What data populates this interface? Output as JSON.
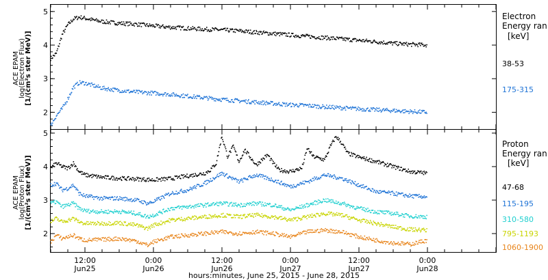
{
  "figure": {
    "xlabel": "hours:minutes, June 25, 2015 - June 28, 2015",
    "x_ticks": [
      {
        "hours": 12,
        "time": "12:00",
        "date": "Jun25"
      },
      {
        "hours": 24,
        "time": "0:00",
        "date": "Jun26"
      },
      {
        "hours": 36,
        "time": "12:00",
        "date": "Jun26"
      },
      {
        "hours": 48,
        "time": "0:00",
        "date": "Jun27"
      },
      {
        "hours": 60,
        "time": "12:00",
        "date": "Jun27"
      },
      {
        "hours": 72,
        "time": "0:00",
        "date": "Jun28"
      }
    ]
  },
  "chart_data": [
    {
      "type": "scatter",
      "panel": "electron",
      "ylabel": [
        "ACE EPAM",
        "log(Electron Flux)",
        "[1/(cm²s ster MeV)]"
      ],
      "ylim": [
        1.5,
        5.2
      ],
      "xlim_hours": [
        6,
        84
      ],
      "y_ticks": [
        2,
        3,
        4,
        5
      ],
      "legend_title": [
        "Electron",
        "Energy ran",
        "[keV]"
      ],
      "series": [
        {
          "name": "38-53",
          "color": "#000000",
          "points": [
            [
              6,
              3.6
            ],
            [
              7,
              3.75
            ],
            [
              8,
              4.3
            ],
            [
              9,
              4.6
            ],
            [
              10,
              4.78
            ],
            [
              11,
              4.83
            ],
            [
              12,
              4.8
            ],
            [
              13,
              4.76
            ],
            [
              15,
              4.7
            ],
            [
              18,
              4.65
            ],
            [
              21,
              4.62
            ],
            [
              24,
              4.57
            ],
            [
              27,
              4.53
            ],
            [
              30,
              4.5
            ],
            [
              33,
              4.47
            ],
            [
              36,
              4.45
            ],
            [
              39,
              4.42
            ],
            [
              42,
              4.38
            ],
            [
              45,
              4.34
            ],
            [
              48,
              4.3
            ],
            [
              51,
              4.26
            ],
            [
              54,
              4.22
            ],
            [
              57,
              4.18
            ],
            [
              60,
              4.14
            ],
            [
              63,
              4.1
            ],
            [
              66,
              4.05
            ],
            [
              69,
              4.02
            ],
            [
              72,
              4.0
            ]
          ]
        },
        {
          "name": "175-315",
          "color": "#1e73d6",
          "points": [
            [
              6,
              1.6
            ],
            [
              7,
              1.9
            ],
            [
              8,
              2.1
            ],
            [
              9,
              2.4
            ],
            [
              10,
              2.75
            ],
            [
              11,
              2.88
            ],
            [
              12,
              2.87
            ],
            [
              13,
              2.82
            ],
            [
              15,
              2.72
            ],
            [
              18,
              2.65
            ],
            [
              21,
              2.6
            ],
            [
              24,
              2.57
            ],
            [
              27,
              2.53
            ],
            [
              30,
              2.48
            ],
            [
              33,
              2.43
            ],
            [
              36,
              2.38
            ],
            [
              39,
              2.34
            ],
            [
              42,
              2.3
            ],
            [
              45,
              2.26
            ],
            [
              48,
              2.22
            ],
            [
              51,
              2.2
            ],
            [
              54,
              2.16
            ],
            [
              57,
              2.13
            ],
            [
              60,
              2.1
            ],
            [
              63,
              2.07
            ],
            [
              66,
              2.05
            ],
            [
              69,
              2.02
            ],
            [
              72,
              2.0
            ]
          ]
        }
      ]
    },
    {
      "type": "scatter",
      "panel": "proton",
      "ylabel": [
        "ACE EPAM",
        "log(Proton Flux)",
        "[1/(cm²s ster MeV)]"
      ],
      "ylim": [
        1.45,
        5.1
      ],
      "xlim_hours": [
        6,
        84
      ],
      "y_ticks": [
        2,
        3,
        4,
        5
      ],
      "legend_title": [
        "Proton",
        "Energy ran",
        "[keV]"
      ],
      "series": [
        {
          "name": "47-68",
          "color": "#000000",
          "points": [
            [
              6,
              3.95
            ],
            [
              7,
              4.1
            ],
            [
              8,
              4.0
            ],
            [
              9,
              3.95
            ],
            [
              10,
              4.1
            ],
            [
              11,
              3.85
            ],
            [
              12,
              3.75
            ],
            [
              15,
              3.68
            ],
            [
              18,
              3.65
            ],
            [
              21,
              3.63
            ],
            [
              24,
              3.6
            ],
            [
              27,
              3.64
            ],
            [
              30,
              3.72
            ],
            [
              33,
              3.8
            ],
            [
              34,
              3.9
            ],
            [
              35,
              4.1
            ],
            [
              36,
              4.9
            ],
            [
              37,
              4.3
            ],
            [
              38,
              4.6
            ],
            [
              39,
              4.15
            ],
            [
              40,
              4.5
            ],
            [
              42,
              4.05
            ],
            [
              44,
              4.35
            ],
            [
              45,
              4.1
            ],
            [
              46,
              3.9
            ],
            [
              48,
              3.85
            ],
            [
              50,
              3.95
            ],
            [
              51,
              4.55
            ],
            [
              52,
              4.3
            ],
            [
              54,
              4.2
            ],
            [
              55,
              4.6
            ],
            [
              56,
              4.9
            ],
            [
              57,
              4.7
            ],
            [
              58,
              4.4
            ],
            [
              60,
              4.28
            ],
            [
              63,
              4.15
            ],
            [
              66,
              4.0
            ],
            [
              69,
              3.85
            ],
            [
              72,
              3.8
            ]
          ]
        },
        {
          "name": "115-195",
          "color": "#1e73d6",
          "points": [
            [
              6,
              3.45
            ],
            [
              7,
              3.5
            ],
            [
              8,
              3.3
            ],
            [
              9,
              3.35
            ],
            [
              10,
              3.45
            ],
            [
              11,
              3.2
            ],
            [
              12,
              3.12
            ],
            [
              15,
              3.05
            ],
            [
              18,
              3.05
            ],
            [
              21,
              3.0
            ],
            [
              23,
              2.9
            ],
            [
              24,
              2.95
            ],
            [
              27,
              3.2
            ],
            [
              30,
              3.3
            ],
            [
              33,
              3.5
            ],
            [
              36,
              3.8
            ],
            [
              39,
              3.55
            ],
            [
              42,
              3.75
            ],
            [
              45,
              3.6
            ],
            [
              48,
              3.4
            ],
            [
              51,
              3.55
            ],
            [
              54,
              3.75
            ],
            [
              57,
              3.65
            ],
            [
              60,
              3.45
            ],
            [
              63,
              3.25
            ],
            [
              66,
              3.2
            ],
            [
              69,
              3.12
            ],
            [
              72,
              3.1
            ]
          ]
        },
        {
          "name": "310-580",
          "color": "#1ecfcf",
          "points": [
            [
              6,
              2.9
            ],
            [
              7,
              2.95
            ],
            [
              8,
              2.8
            ],
            [
              9,
              2.85
            ],
            [
              10,
              2.9
            ],
            [
              11,
              2.75
            ],
            [
              12,
              2.68
            ],
            [
              15,
              2.65
            ],
            [
              18,
              2.66
            ],
            [
              21,
              2.6
            ],
            [
              23,
              2.5
            ],
            [
              24,
              2.55
            ],
            [
              27,
              2.75
            ],
            [
              30,
              2.8
            ],
            [
              33,
              2.85
            ],
            [
              36,
              2.9
            ],
            [
              39,
              2.85
            ],
            [
              42,
              2.9
            ],
            [
              45,
              2.85
            ],
            [
              48,
              2.7
            ],
            [
              51,
              2.85
            ],
            [
              54,
              3.0
            ],
            [
              57,
              2.9
            ],
            [
              60,
              2.75
            ],
            [
              63,
              2.65
            ],
            [
              66,
              2.6
            ],
            [
              69,
              2.52
            ],
            [
              72,
              2.5
            ]
          ]
        },
        {
          "name": "795-1193",
          "color": "#c8d400",
          "points": [
            [
              6,
              2.35
            ],
            [
              7,
              2.45
            ],
            [
              8,
              2.35
            ],
            [
              9,
              2.4
            ],
            [
              10,
              2.45
            ],
            [
              11,
              2.35
            ],
            [
              12,
              2.3
            ],
            [
              15,
              2.3
            ],
            [
              18,
              2.32
            ],
            [
              21,
              2.25
            ],
            [
              23,
              2.15
            ],
            [
              24,
              2.25
            ],
            [
              27,
              2.4
            ],
            [
              30,
              2.45
            ],
            [
              33,
              2.5
            ],
            [
              36,
              2.55
            ],
            [
              39,
              2.5
            ],
            [
              42,
              2.55
            ],
            [
              45,
              2.5
            ],
            [
              48,
              2.4
            ],
            [
              51,
              2.5
            ],
            [
              54,
              2.6
            ],
            [
              57,
              2.55
            ],
            [
              60,
              2.4
            ],
            [
              63,
              2.3
            ],
            [
              66,
              2.2
            ],
            [
              69,
              2.12
            ],
            [
              72,
              2.1
            ]
          ]
        },
        {
          "name": "1060-1900",
          "color": "#e8841a",
          "points": [
            [
              6,
              1.75
            ],
            [
              7,
              1.95
            ],
            [
              8,
              1.85
            ],
            [
              9,
              1.9
            ],
            [
              10,
              1.95
            ],
            [
              11,
              1.85
            ],
            [
              12,
              1.8
            ],
            [
              15,
              1.82
            ],
            [
              18,
              1.85
            ],
            [
              21,
              1.78
            ],
            [
              23,
              1.65
            ],
            [
              24,
              1.75
            ],
            [
              27,
              1.9
            ],
            [
              30,
              1.95
            ],
            [
              33,
              2.0
            ],
            [
              36,
              2.05
            ],
            [
              39,
              2.0
            ],
            [
              42,
              2.05
            ],
            [
              45,
              2.0
            ],
            [
              48,
              1.9
            ],
            [
              51,
              2.05
            ],
            [
              54,
              2.1
            ],
            [
              57,
              2.05
            ],
            [
              60,
              1.9
            ],
            [
              63,
              1.8
            ],
            [
              66,
              1.72
            ],
            [
              69,
              1.68
            ],
            [
              72,
              1.8
            ]
          ]
        }
      ]
    }
  ]
}
